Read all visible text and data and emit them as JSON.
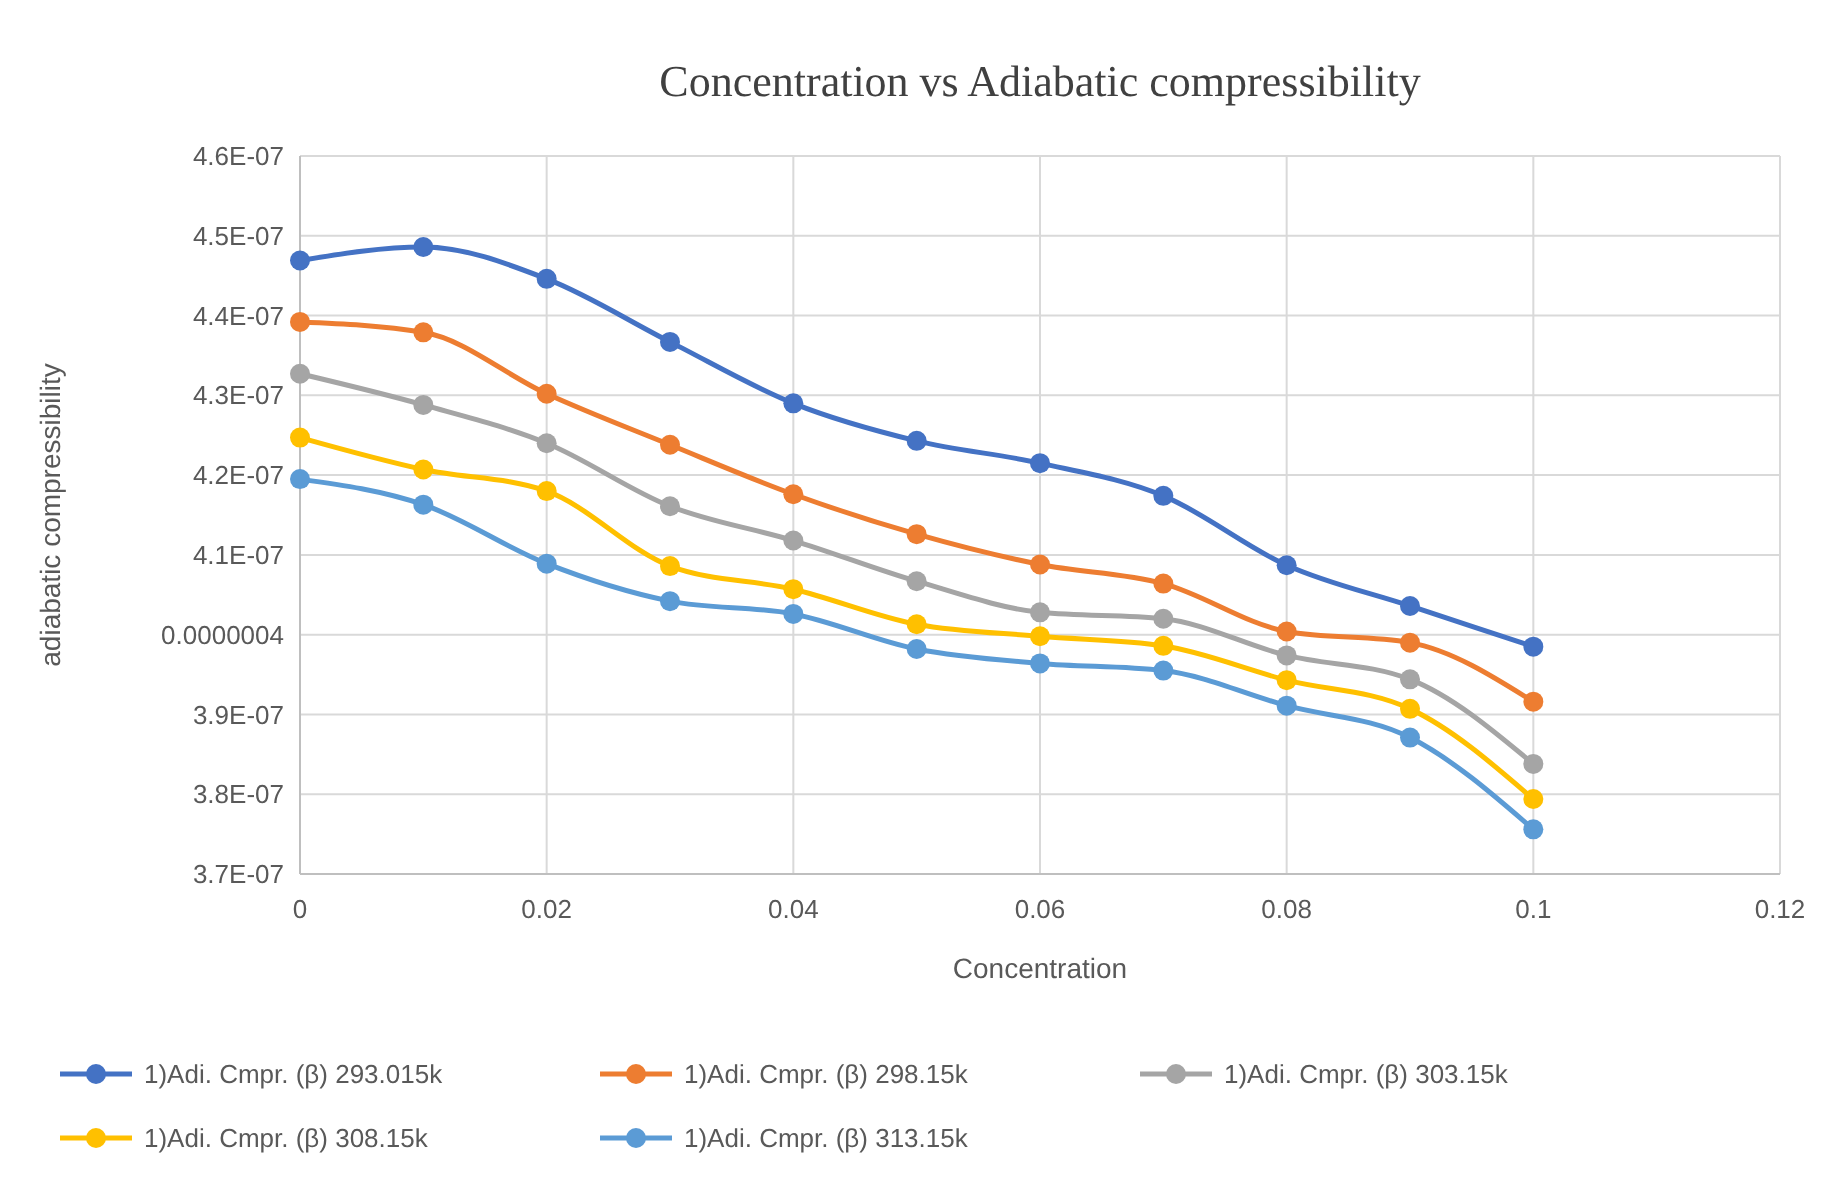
{
  "chart_data": {
    "type": "line",
    "title": "Concentration vs Adiabatic compressibility",
    "xlabel": "Concentration",
    "ylabel": "adiabatic compressibility",
    "x": [
      0,
      0.01,
      0.02,
      0.03,
      0.04,
      0.05,
      0.06,
      0.07,
      0.08,
      0.09,
      0.1
    ],
    "series": [
      {
        "name": "1)Adi. Cmpr. (β) 293.015k",
        "color": "#4472c4",
        "values": [
          4.469e-07,
          4.486e-07,
          4.446e-07,
          4.367e-07,
          4.29e-07,
          4.243e-07,
          4.215e-07,
          4.174e-07,
          4.087e-07,
          4.036e-07,
          3.985e-07
        ]
      },
      {
        "name": "1)Adi. Cmpr. (β) 298.15k",
        "color": "#ed7d31",
        "values": [
          4.392e-07,
          4.379e-07,
          4.302e-07,
          4.238e-07,
          4.176e-07,
          4.126e-07,
          4.088e-07,
          4.064e-07,
          4.004e-07,
          3.99e-07,
          3.916e-07
        ]
      },
      {
        "name": "1)Adi. Cmpr. (β) 303.15k",
        "color": "#a5a5a5",
        "values": [
          4.327e-07,
          4.288e-07,
          4.24e-07,
          4.161e-07,
          4.118e-07,
          4.067e-07,
          4.028e-07,
          4.02e-07,
          3.974e-07,
          3.944e-07,
          3.838e-07
        ]
      },
      {
        "name": "1)Adi. Cmpr. (β) 308.15k",
        "color": "#ffc000",
        "values": [
          4.247e-07,
          4.207e-07,
          4.18e-07,
          4.086e-07,
          4.057e-07,
          4.013e-07,
          3.998e-07,
          3.986e-07,
          3.943e-07,
          3.907e-07,
          3.794e-07
        ]
      },
      {
        "name": "1)Adi. Cmpr. (β) 313.15k",
        "color": "#5b9bd5",
        "values": [
          4.195e-07,
          4.163e-07,
          4.089e-07,
          4.042e-07,
          4.026e-07,
          3.982e-07,
          3.964e-07,
          3.955e-07,
          3.911e-07,
          3.871e-07,
          3.756e-07
        ]
      }
    ],
    "xlim": [
      0,
      0.12
    ],
    "xticks": [
      0,
      0.02,
      0.04,
      0.06,
      0.08,
      0.1,
      0.12
    ],
    "ylim": [
      3.7e-07,
      4.6e-07
    ],
    "yticks": [
      {
        "value": 3.7e-07,
        "label": "3.7E-07"
      },
      {
        "value": 3.8e-07,
        "label": "3.8E-07"
      },
      {
        "value": 3.9e-07,
        "label": "3.9E-07"
      },
      {
        "value": 4e-07,
        "label": "0.0000004"
      },
      {
        "value": 4.1e-07,
        "label": "4.1E-07"
      },
      {
        "value": 4.2e-07,
        "label": "4.2E-07"
      },
      {
        "value": 4.3e-07,
        "label": "4.3E-07"
      },
      {
        "value": 4.4e-07,
        "label": "4.4E-07"
      },
      {
        "value": 4.5e-07,
        "label": "4.5E-07"
      },
      {
        "value": 4.6e-07,
        "label": "4.6E-07"
      }
    ],
    "grid": true,
    "legend": "bottom",
    "marker": "circle",
    "line_style": "solid"
  }
}
